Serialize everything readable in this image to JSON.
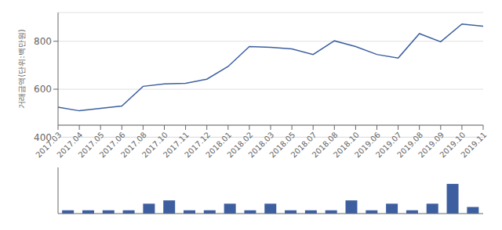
{
  "chart_data": [
    {
      "type": "line",
      "categories": [
        "2017.03",
        "2017.04",
        "2017.05",
        "2017.06",
        "2017.08",
        "2017.10",
        "2017.11",
        "2017.12",
        "2018.01",
        "2018.02",
        "2018.03",
        "2018.05",
        "2018.07",
        "2018.08",
        "2018.10",
        "2019.06",
        "2019.07",
        "2019.08",
        "2019.09",
        "2019.10",
        "2019.11"
      ],
      "values": [
        525,
        510,
        520,
        530,
        612,
        622,
        625,
        642,
        695,
        778,
        775,
        768,
        745,
        802,
        778,
        745,
        730,
        832,
        798,
        872,
        863
      ],
      "color": "#3d5fa0",
      "ylabel": "거래금액(단위:백만원)",
      "ylim": [
        450,
        920
      ],
      "yticks": [
        600,
        800
      ],
      "grid": true,
      "annotations": [
        {
          "text": "400",
          "y": 400
        }
      ]
    },
    {
      "type": "bar",
      "categories": [
        "2017.03",
        "2017.04",
        "2017.05",
        "2017.06",
        "2017.08",
        "2017.10",
        "2017.11",
        "2017.12",
        "2018.01",
        "2018.02",
        "2018.03",
        "2018.05",
        "2018.07",
        "2018.08",
        "2018.10",
        "2019.06",
        "2019.07",
        "2019.08",
        "2019.09",
        "2019.10",
        "2019.11"
      ],
      "values": [
        1,
        1,
        1,
        1,
        3,
        4,
        1,
        1,
        3,
        1,
        3,
        1,
        1,
        1,
        4,
        1,
        3,
        1,
        3,
        9,
        2
      ],
      "color": "#3d5fa0",
      "ylim": [
        0,
        14
      ],
      "tick_labels": false
    }
  ]
}
